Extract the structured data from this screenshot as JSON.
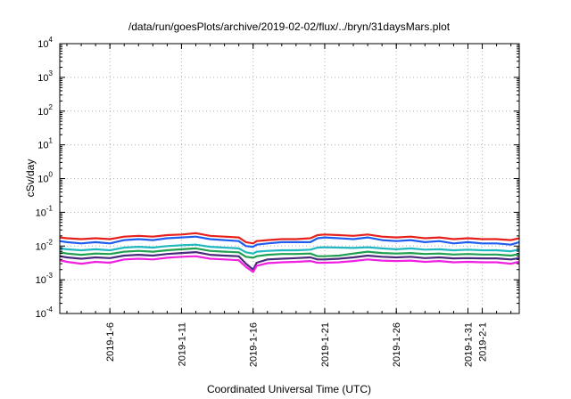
{
  "chart_data": {
    "type": "line",
    "title": "/data/run/goesPlots/archive/2019-02-02/flux/../bryn/31daysMars.plot",
    "xlabel": "Coordinated Universal Time (UTC)",
    "ylabel": "cSv/day",
    "yscale": "log",
    "ylim": [
      0.0001,
      10000
    ],
    "xlim": [
      "2019-01-02T12:00",
      "2019-02-03T14:00"
    ],
    "grid": true,
    "y_ticks": [
      {
        "value": 0.0001,
        "base": "10",
        "exp": "-4"
      },
      {
        "value": 0.001,
        "base": "10",
        "exp": "-3"
      },
      {
        "value": 0.01,
        "base": "10",
        "exp": "-2"
      },
      {
        "value": 0.1,
        "base": "10",
        "exp": "-1"
      },
      {
        "value": 1,
        "base": "10",
        "exp": "0"
      },
      {
        "value": 10,
        "base": "10",
        "exp": "1"
      },
      {
        "value": 100,
        "base": "10",
        "exp": "2"
      },
      {
        "value": 1000,
        "base": "10",
        "exp": "3"
      },
      {
        "value": 10000,
        "base": "10",
        "exp": "4"
      }
    ],
    "x_ticks": [
      {
        "value": "2019-01-06",
        "label": "2019-1-6"
      },
      {
        "value": "2019-01-11",
        "label": "2019-1-11"
      },
      {
        "value": "2019-01-16",
        "label": "2019-1-16"
      },
      {
        "value": "2019-01-21",
        "label": "2019-1-21"
      },
      {
        "value": "2019-01-26",
        "label": "2019-1-26"
      },
      {
        "value": "2019-01-31",
        "label": "2019-1-31"
      },
      {
        "value": "2019-02-01",
        "label": "2019-2-1"
      }
    ],
    "x": [
      "2019-01-02T12:00",
      "2019-01-03",
      "2019-01-04",
      "2019-01-05",
      "2019-01-06",
      "2019-01-07",
      "2019-01-08",
      "2019-01-09",
      "2019-01-10",
      "2019-01-11",
      "2019-01-12",
      "2019-01-13",
      "2019-01-14",
      "2019-01-15",
      "2019-01-15T12:00",
      "2019-01-16",
      "2019-01-16T06:00",
      "2019-01-17",
      "2019-01-18",
      "2019-01-19",
      "2019-01-20",
      "2019-01-20T12:00",
      "2019-01-21",
      "2019-01-22",
      "2019-01-23",
      "2019-01-24",
      "2019-01-25",
      "2019-01-26",
      "2019-01-27",
      "2019-01-28",
      "2019-01-29",
      "2019-01-30",
      "2019-01-31",
      "2019-02-01",
      "2019-02-02",
      "2019-02-03",
      "2019-02-03T14:00"
    ],
    "series": [
      {
        "color": "#e8201c",
        "values": [
          0.018,
          0.017,
          0.016,
          0.017,
          0.016,
          0.019,
          0.02,
          0.019,
          0.021,
          0.022,
          0.024,
          0.02,
          0.019,
          0.018,
          0.013,
          0.012,
          0.014,
          0.015,
          0.016,
          0.016,
          0.017,
          0.021,
          0.022,
          0.021,
          0.02,
          0.022,
          0.019,
          0.018,
          0.019,
          0.017,
          0.018,
          0.016,
          0.017,
          0.016,
          0.016,
          0.015,
          0.017
        ]
      },
      {
        "color": "#1f5cf0",
        "values": [
          0.014,
          0.013,
          0.012,
          0.013,
          0.012,
          0.015,
          0.016,
          0.015,
          0.017,
          0.018,
          0.019,
          0.016,
          0.015,
          0.014,
          0.01,
          0.0095,
          0.011,
          0.012,
          0.013,
          0.013,
          0.013,
          0.017,
          0.018,
          0.017,
          0.016,
          0.018,
          0.015,
          0.014,
          0.015,
          0.013,
          0.014,
          0.012,
          0.013,
          0.012,
          0.012,
          0.011,
          0.013
        ]
      },
      {
        "color": "#20b8c0",
        "values": [
          0.0085,
          0.008,
          0.0075,
          0.008,
          0.0075,
          0.009,
          0.0095,
          0.009,
          0.01,
          0.0105,
          0.011,
          0.0095,
          0.009,
          0.0085,
          0.0065,
          0.006,
          0.0068,
          0.0072,
          0.0075,
          0.0075,
          0.0078,
          0.009,
          0.0092,
          0.009,
          0.0088,
          0.0092,
          0.0085,
          0.008,
          0.0085,
          0.0078,
          0.008,
          0.0075,
          0.0078,
          0.0075,
          0.0075,
          0.007,
          0.0078
        ]
      },
      {
        "color": "#20a050",
        "values": [
          0.0065,
          0.006,
          0.0055,
          0.006,
          0.0058,
          0.0068,
          0.0072,
          0.0068,
          0.0075,
          0.008,
          0.0085,
          0.0072,
          0.0068,
          0.0065,
          0.0048,
          0.0045,
          0.005,
          0.0055,
          0.0058,
          0.0058,
          0.006,
          0.005,
          0.005,
          0.0052,
          0.006,
          0.0068,
          0.0062,
          0.006,
          0.0062,
          0.0058,
          0.006,
          0.0056,
          0.0058,
          0.0056,
          0.0056,
          0.0052,
          0.0058
        ]
      },
      {
        "color": "#4a2a7a",
        "values": [
          0.005,
          0.0046,
          0.0042,
          0.0046,
          0.0044,
          0.0052,
          0.0055,
          0.0052,
          0.0058,
          0.0062,
          0.0066,
          0.0055,
          0.0052,
          0.005,
          0.003,
          0.002,
          0.0032,
          0.004,
          0.0042,
          0.0044,
          0.0046,
          0.004,
          0.004,
          0.0042,
          0.0046,
          0.0052,
          0.0048,
          0.0046,
          0.0048,
          0.0044,
          0.0046,
          0.0043,
          0.0044,
          0.0043,
          0.0043,
          0.004,
          0.0044
        ]
      },
      {
        "color": "#f020e0",
        "values": [
          0.0038,
          0.0034,
          0.003,
          0.0034,
          0.0032,
          0.004,
          0.0042,
          0.004,
          0.0045,
          0.0048,
          0.005,
          0.0042,
          0.004,
          0.0038,
          0.0024,
          0.0017,
          0.0026,
          0.0031,
          0.0033,
          0.0034,
          0.0036,
          0.0032,
          0.0032,
          0.0033,
          0.0036,
          0.004,
          0.0037,
          0.0036,
          0.0037,
          0.0034,
          0.0036,
          0.0033,
          0.0034,
          0.0033,
          0.0033,
          0.003,
          0.0034
        ]
      }
    ]
  }
}
